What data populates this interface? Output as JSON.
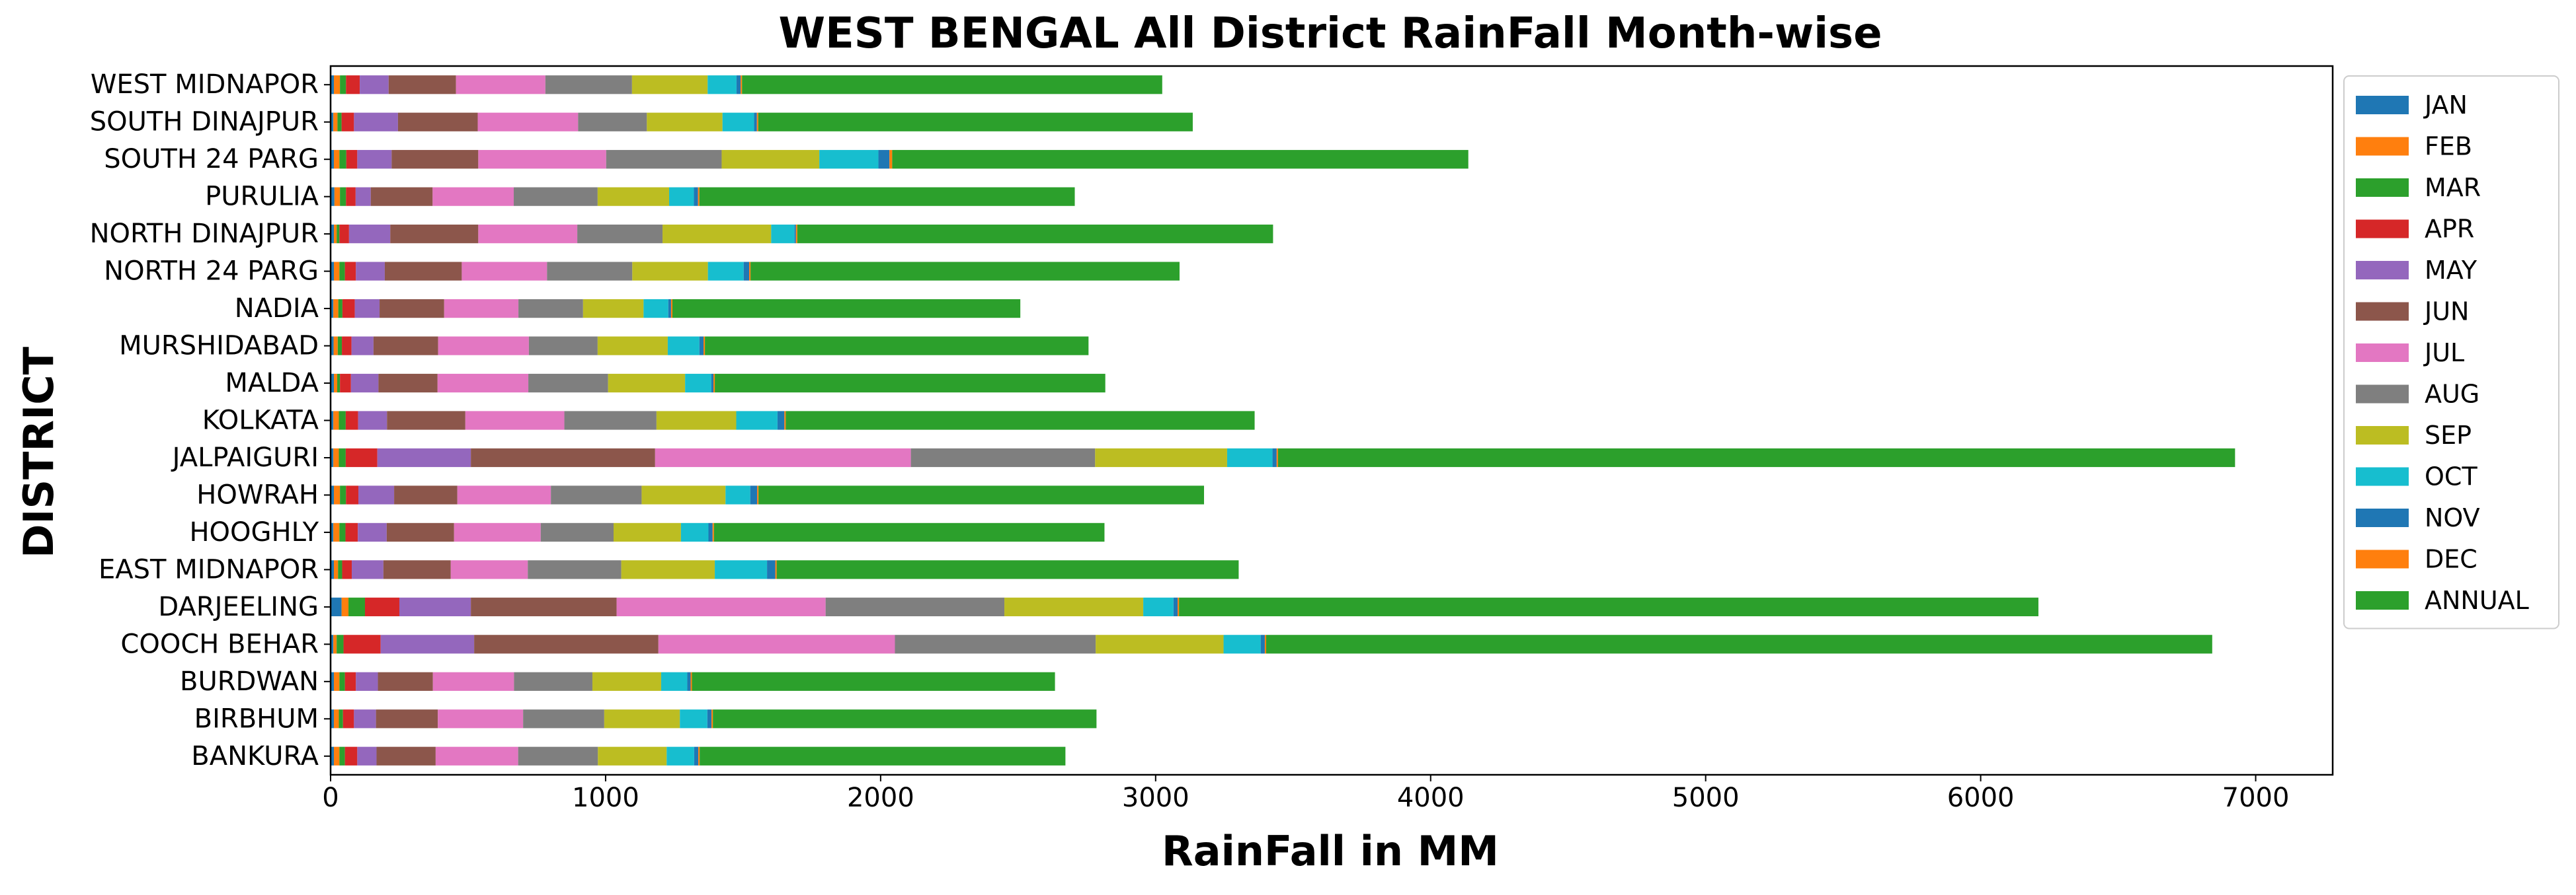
{
  "chart_data": {
    "type": "bar",
    "orientation": "horizontal",
    "stacked": true,
    "title": "WEST BENGAL All District RainFall Month-wise",
    "xlabel": "RainFall in MM",
    "ylabel": "DISTRICT",
    "xlim": [
      0,
      7280
    ],
    "x_ticks": [
      0,
      1000,
      2000,
      3000,
      4000,
      5000,
      6000,
      7000
    ],
    "grid": false,
    "legend_position": "outside-right",
    "categories": [
      "WEST MIDNAPOR",
      "SOUTH DINAJPUR",
      "SOUTH 24 PARG",
      "PURULIA",
      "NORTH DINAJPUR",
      "NORTH 24 PARG",
      "NADIA",
      "MURSHIDABAD",
      "MALDA",
      "KOLKATA",
      "JALPAIGURI",
      "HOWRAH",
      "HOOGHLY",
      "EAST MIDNAPOR",
      "DARJEELING",
      "COOCH BEHAR",
      "BURDWAN",
      "BIRBHUM",
      "BANKURA"
    ],
    "series": [
      {
        "name": "JAN",
        "color": "#1f77b4",
        "values": [
          12,
          10,
          12,
          14,
          12,
          12,
          10,
          11,
          12,
          10,
          10,
          12,
          10,
          12,
          40,
          10,
          12,
          12,
          12
        ]
      },
      {
        "name": "FEB",
        "color": "#ff7f0e",
        "values": [
          22,
          15,
          20,
          20,
          10,
          20,
          18,
          15,
          12,
          20,
          20,
          22,
          22,
          15,
          25,
          12,
          20,
          18,
          20
        ]
      },
      {
        "name": "MAR",
        "color": "#2ca02c",
        "values": [
          22,
          15,
          25,
          22,
          10,
          20,
          15,
          15,
          10,
          25,
          25,
          22,
          22,
          15,
          60,
          25,
          20,
          15,
          20
        ]
      },
      {
        "name": "APR",
        "color": "#d62728",
        "values": [
          50,
          45,
          40,
          35,
          35,
          40,
          45,
          35,
          40,
          45,
          115,
          45,
          45,
          35,
          125,
          135,
          40,
          40,
          45
        ]
      },
      {
        "name": "MAY",
        "color": "#9467bd",
        "values": [
          105,
          160,
          125,
          55,
          150,
          105,
          90,
          80,
          100,
          105,
          340,
          130,
          105,
          115,
          260,
          340,
          80,
          80,
          70
        ]
      },
      {
        "name": "JUN",
        "color": "#8c564b",
        "values": [
          245,
          290,
          315,
          225,
          320,
          280,
          235,
          235,
          215,
          285,
          670,
          230,
          245,
          245,
          530,
          670,
          200,
          225,
          215
        ]
      },
      {
        "name": "JUL",
        "color": "#e377c2",
        "values": [
          325,
          365,
          465,
          295,
          360,
          310,
          270,
          330,
          330,
          360,
          930,
          340,
          315,
          280,
          760,
          860,
          295,
          310,
          300
        ]
      },
      {
        "name": "AUG",
        "color": "#7f7f7f",
        "values": [
          315,
          250,
          420,
          305,
          310,
          310,
          235,
          250,
          290,
          335,
          670,
          330,
          265,
          340,
          650,
          730,
          285,
          295,
          290
        ]
      },
      {
        "name": "SEP",
        "color": "#bcbd22",
        "values": [
          275,
          275,
          355,
          260,
          395,
          275,
          220,
          255,
          280,
          290,
          480,
          305,
          245,
          340,
          505,
          465,
          250,
          275,
          250
        ]
      },
      {
        "name": "OCT",
        "color": "#17becf",
        "values": [
          105,
          115,
          215,
          90,
          85,
          130,
          90,
          115,
          95,
          150,
          165,
          90,
          100,
          190,
          110,
          135,
          95,
          100,
          100
        ]
      },
      {
        "name": "NOV",
        "color": "#1f77b4",
        "values": [
          15,
          10,
          40,
          15,
          5,
          20,
          10,
          15,
          8,
          25,
          15,
          25,
          15,
          30,
          15,
          15,
          12,
          15,
          15
        ]
      },
      {
        "name": "DEC",
        "color": "#ff7f0e",
        "values": [
          5,
          5,
          10,
          5,
          5,
          5,
          5,
          5,
          5,
          5,
          5,
          5,
          5,
          5,
          5,
          5,
          5,
          5,
          5
        ]
      },
      {
        "name": "ANNUAL",
        "color": "#2ca02c",
        "values": [
          1528,
          1580,
          2095,
          1365,
          1730,
          1560,
          1265,
          1395,
          1420,
          1705,
          3480,
          1620,
          1420,
          1680,
          3125,
          3440,
          1320,
          1395,
          1330
        ]
      }
    ]
  }
}
